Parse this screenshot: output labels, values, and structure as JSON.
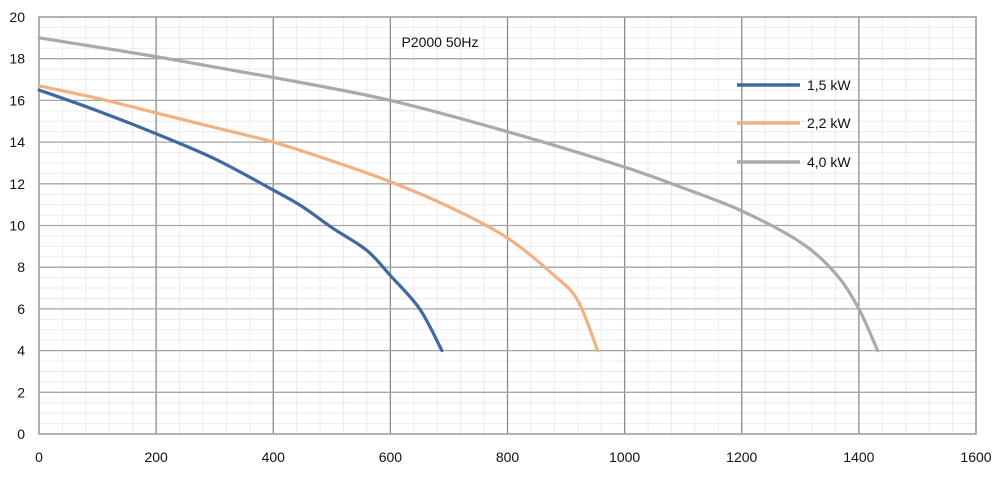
{
  "chart_data": {
    "type": "line",
    "title": "P2000 50Hz",
    "xlabel": "",
    "ylabel": "",
    "xlim": [
      0,
      1600
    ],
    "ylim": [
      0,
      20
    ],
    "x_ticks": [
      0,
      200,
      400,
      600,
      800,
      1000,
      1200,
      1400,
      1600
    ],
    "y_ticks": [
      0,
      2,
      4,
      6,
      8,
      10,
      12,
      14,
      16,
      18,
      20
    ],
    "grid": {
      "major": true,
      "minor": true
    },
    "legend_position": "right-upper inside",
    "series": [
      {
        "name": "1,5 kW",
        "color": "#3e6aa0",
        "x": [
          0,
          100,
          200,
          300,
          400,
          450,
          500,
          560,
          600,
          650,
          688
        ],
        "y": [
          16.5,
          15.5,
          14.4,
          13.2,
          11.7,
          10.9,
          9.9,
          8.8,
          7.6,
          6.0,
          4.0
        ]
      },
      {
        "name": "2,2 kW",
        "color": "#f0b183",
        "x": [
          0,
          100,
          200,
          300,
          400,
          500,
          600,
          700,
          800,
          880,
          920,
          954
        ],
        "y": [
          16.7,
          16.1,
          15.4,
          14.7,
          14.0,
          13.1,
          12.1,
          10.9,
          9.4,
          7.6,
          6.4,
          4.0
        ]
      },
      {
        "name": "4,0 kW",
        "color": "#aaaaaa",
        "x": [
          0,
          200,
          400,
          600,
          800,
          1000,
          1100,
          1200,
          1300,
          1360,
          1400,
          1432
        ],
        "y": [
          19.0,
          18.1,
          17.1,
          16.0,
          14.5,
          12.8,
          11.8,
          10.7,
          9.2,
          7.7,
          6.0,
          4.0
        ]
      }
    ]
  }
}
